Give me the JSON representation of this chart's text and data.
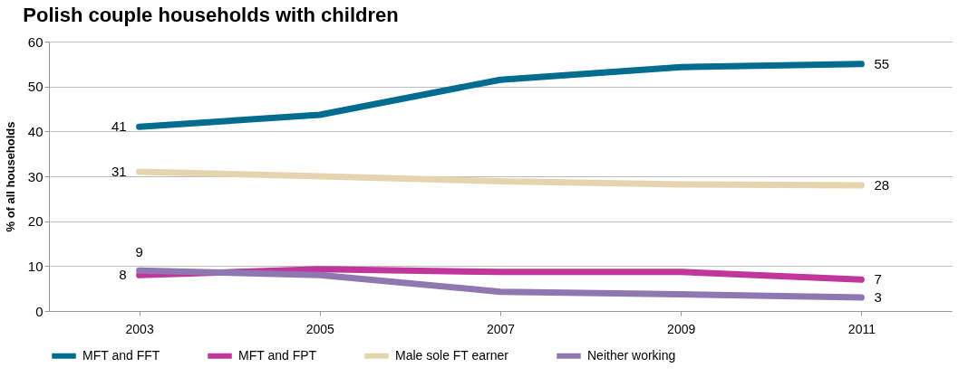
{
  "chart_data": {
    "type": "line",
    "title": "Polish couple households with children",
    "ylabel": "% of all households",
    "categories": [
      "2003",
      "2005",
      "2007",
      "2009",
      "2011"
    ],
    "ylim": [
      0,
      60
    ],
    "yticks": [
      0,
      10,
      20,
      30,
      40,
      50,
      60
    ],
    "grid": "y",
    "legend": "bottom",
    "series": [
      {
        "name": "MFT and FFT",
        "color": "#006c8f",
        "values": [
          41,
          43.7,
          51.5,
          54.3,
          55
        ],
        "value_labels": [
          "41",
          null,
          null,
          null,
          "55"
        ]
      },
      {
        "name": "MFT and FPT",
        "color": "#c0369a",
        "values": [
          8,
          9.3,
          8.7,
          8.7,
          7
        ],
        "value_labels": [
          "8",
          null,
          null,
          null,
          "7"
        ]
      },
      {
        "name": "Male sole FT earner",
        "color": "#e6d4b0",
        "values": [
          31,
          30,
          28.9,
          28.2,
          28
        ],
        "value_labels": [
          "31",
          null,
          null,
          null,
          "28"
        ]
      },
      {
        "name": "Neither working",
        "color": "#8f77b2",
        "values": [
          9,
          8,
          4.3,
          3.7,
          3
        ],
        "value_labels": [
          "9",
          null,
          null,
          null,
          "3"
        ]
      }
    ]
  }
}
